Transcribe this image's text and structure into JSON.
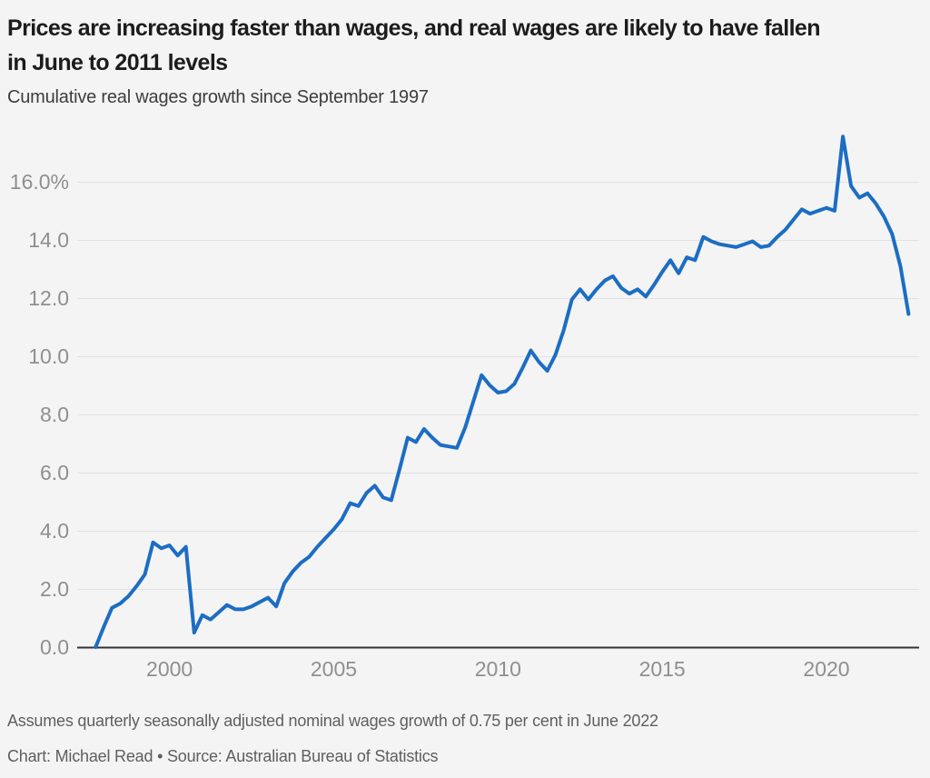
{
  "header": {
    "title_lines": [
      "Prices are increasing faster than wages, and real wages are likely to have fallen",
      "in June to 2011 levels"
    ],
    "subtitle": "Cumulative real wages growth since September 1997"
  },
  "footer": {
    "note": "Assumes quarterly seasonally adjusted nominal wages growth of 0.75 per cent in June 2022",
    "credit": "Chart: Michael Read • Source: Australian Bureau of Statistics"
  },
  "colors": {
    "background": "#f4f4f4",
    "line": "#1c6dc4",
    "grid": "#e2e2e2",
    "axis": "#333333",
    "tick_label": "#8f8f8f",
    "title_text": "#1c1c1c",
    "subtitle_text": "#3d3d3d",
    "footer_text": "#5f5f5f"
  },
  "chart_data": {
    "type": "line",
    "title": "Cumulative real wages growth since September 1997",
    "unit": "%",
    "frequency": "quarterly",
    "series_name": "Cumulative real wages growth",
    "x_start": 1997.75,
    "x_step": 0.25,
    "x_end": 2022.5,
    "values": [
      0,
      0.7,
      1.35,
      1.5,
      1.75,
      2.1,
      2.5,
      3.6,
      3.4,
      3.5,
      3.15,
      3.45,
      0.5,
      1.1,
      0.95,
      1.2,
      1.45,
      1.3,
      1.3,
      1.4,
      1.55,
      1.7,
      1.4,
      2.2,
      2.6,
      2.9,
      3.1,
      3.45,
      3.75,
      4.05,
      4.4,
      4.95,
      4.85,
      5.3,
      5.55,
      5.15,
      5.05,
      6.1,
      7.2,
      7.05,
      7.5,
      7.2,
      6.95,
      6.9,
      6.85,
      7.55,
      8.45,
      9.35,
      9.0,
      8.75,
      8.8,
      9.05,
      9.6,
      10.2,
      9.8,
      9.5,
      10.05,
      10.9,
      11.95,
      12.3,
      11.95,
      12.3,
      12.6,
      12.75,
      12.35,
      12.15,
      12.3,
      12.05,
      12.45,
      12.9,
      13.3,
      12.85,
      13.4,
      13.3,
      14.1,
      13.95,
      13.85,
      13.8,
      13.75,
      13.85,
      13.95,
      13.75,
      13.8,
      14.1,
      14.35,
      14.7,
      15.05,
      14.9,
      15.0,
      15.1,
      15.0,
      17.55,
      15.85,
      15.45,
      15.6,
      15.25,
      14.8,
      14.2,
      13.1,
      11.45
    ],
    "xlim": [
      1997.19,
      2022.82
    ],
    "ylim": [
      0,
      17.56
    ],
    "yticks": [
      {
        "value": 0,
        "label": "0.0"
      },
      {
        "value": 2,
        "label": "2.0"
      },
      {
        "value": 4,
        "label": "4.0"
      },
      {
        "value": 6,
        "label": "6.0"
      },
      {
        "value": 8,
        "label": "8.0"
      },
      {
        "value": 10,
        "label": "10.0"
      },
      {
        "value": 12,
        "label": "12.0"
      },
      {
        "value": 14,
        "label": "14.0"
      },
      {
        "value": 16,
        "label": "16.0%"
      }
    ],
    "xticks": [
      {
        "value": 2000,
        "label": "2000"
      },
      {
        "value": 2005,
        "label": "2005"
      },
      {
        "value": 2010,
        "label": "2010"
      },
      {
        "value": 2015,
        "label": "2015"
      },
      {
        "value": 2020,
        "label": "2020"
      }
    ],
    "grid": "horizontal",
    "legend": "none"
  }
}
